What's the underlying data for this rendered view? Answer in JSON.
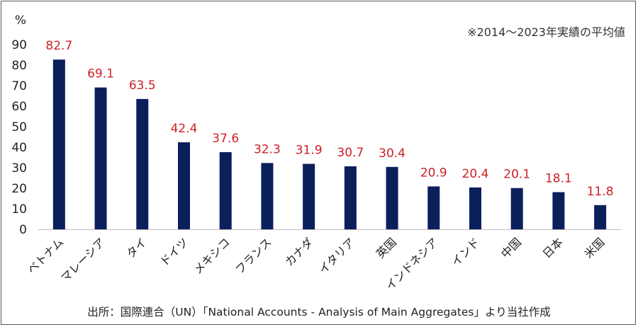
{
  "chart_data": {
    "type": "bar",
    "unit_label": "%",
    "note": "※2014～2023年実績の平均値",
    "source": "出所：国際連合（UN）「National Accounts - Analysis of Main Aggregates」より当社作成",
    "categories": [
      "ベトナム",
      "マレーシア",
      "タイ",
      "ドイツ",
      "メキシコ",
      "フランス",
      "カナダ",
      "イタリア",
      "英国",
      "インドネシア",
      "インド",
      "中国",
      "日本",
      "米国"
    ],
    "values": [
      82.7,
      69.1,
      63.5,
      42.4,
      37.6,
      32.3,
      31.9,
      30.7,
      30.4,
      20.9,
      20.4,
      20.1,
      18.1,
      11.8
    ],
    "value_labels": [
      "82.7",
      "69.1",
      "63.5",
      "42.4",
      "37.6",
      "32.3",
      "31.9",
      "30.7",
      "30.4",
      "20.9",
      "20.4",
      "20.1",
      "18.1",
      "11.8"
    ],
    "ylim": [
      0,
      90
    ],
    "yticks": [
      "0",
      "10",
      "20",
      "30",
      "40",
      "50",
      "60",
      "70",
      "80",
      "90"
    ],
    "grid": false,
    "colors": {
      "bar": "#0b1f5c",
      "label": "#d01f26",
      "axis": "#bfbfbf"
    }
  }
}
